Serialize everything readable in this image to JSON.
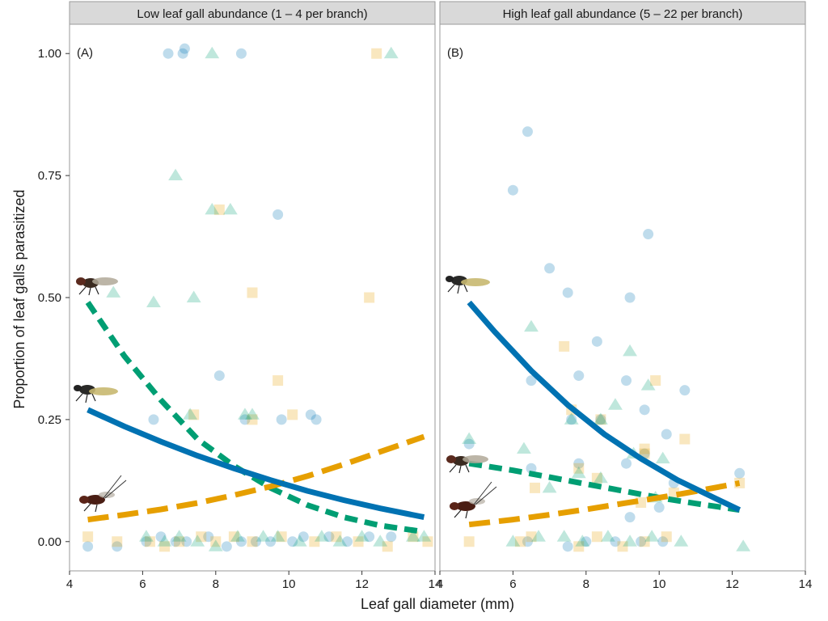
{
  "chart_data": {
    "type": "scatter",
    "ylabel": "Proportion of leaf galls parasitized",
    "xlabel": "Leaf gall diameter (mm)",
    "xlim": [
      4,
      14
    ],
    "ylim": [
      -0.06,
      1.06
    ],
    "x_ticks": [
      4,
      6,
      8,
      10,
      12,
      14
    ],
    "y_ticks": [
      0.0,
      0.25,
      0.5,
      0.75,
      1.0
    ],
    "y_tick_labels": [
      "0.00",
      "0.25",
      "0.50",
      "0.75",
      "1.00"
    ],
    "grid": false,
    "colors": {
      "blue": "#0072B2",
      "green": "#009E73",
      "orange": "#E69F00",
      "strip_bg": "#d9d9d9",
      "panel_border": "#9a9a9a"
    },
    "panels": [
      {
        "strip": "Low leaf gall abundance (1 – 4 per branch)",
        "tag": "(A)",
        "points": {
          "blue": [
            [
              6.7,
              1.0
            ],
            [
              7.1,
              1.0
            ],
            [
              7.15,
              1.01
            ],
            [
              8.7,
              1.0
            ],
            [
              9.7,
              0.67
            ],
            [
              8.1,
              0.34
            ],
            [
              6.3,
              0.25
            ],
            [
              8.8,
              0.25
            ],
            [
              9.8,
              0.25
            ],
            [
              10.6,
              0.26
            ],
            [
              10.75,
              0.25
            ],
            [
              4.5,
              -0.01
            ],
            [
              5.3,
              -0.01
            ],
            [
              6.1,
              0.0
            ],
            [
              6.5,
              0.01
            ],
            [
              6.9,
              0.0
            ],
            [
              7.2,
              0.0
            ],
            [
              7.8,
              0.01
            ],
            [
              8.3,
              -0.01
            ],
            [
              8.7,
              0.0
            ],
            [
              9.1,
              0.0
            ],
            [
              9.5,
              0.0
            ],
            [
              10.1,
              0.0
            ],
            [
              10.4,
              0.01
            ],
            [
              11.1,
              0.01
            ],
            [
              11.6,
              0.0
            ],
            [
              12.2,
              0.01
            ],
            [
              12.8,
              0.01
            ]
          ],
          "green": [
            [
              7.9,
              1.0
            ],
            [
              12.8,
              1.0
            ],
            [
              6.9,
              0.75
            ],
            [
              7.9,
              0.68
            ],
            [
              8.4,
              0.68
            ],
            [
              5.2,
              0.51
            ],
            [
              6.3,
              0.49
            ],
            [
              7.4,
              0.5
            ],
            [
              7.3,
              0.26
            ],
            [
              8.8,
              0.26
            ],
            [
              9.0,
              0.26
            ],
            [
              6.1,
              0.01
            ],
            [
              6.6,
              0.0
            ],
            [
              7.0,
              0.01
            ],
            [
              7.5,
              0.0
            ],
            [
              8.0,
              -0.01
            ],
            [
              8.6,
              0.01
            ],
            [
              9.3,
              0.01
            ],
            [
              9.7,
              0.01
            ],
            [
              10.3,
              0.0
            ],
            [
              10.9,
              0.01
            ],
            [
              11.4,
              0.0
            ],
            [
              12.0,
              0.01
            ],
            [
              12.5,
              0.0
            ],
            [
              13.4,
              0.01
            ],
            [
              13.7,
              0.01
            ]
          ],
          "orange": [
            [
              12.4,
              1.0
            ],
            [
              8.1,
              0.68
            ],
            [
              9.0,
              0.51
            ],
            [
              12.2,
              0.5
            ],
            [
              9.7,
              0.33
            ],
            [
              7.4,
              0.26
            ],
            [
              9.0,
              0.25
            ],
            [
              10.1,
              0.26
            ],
            [
              4.5,
              0.01
            ],
            [
              5.3,
              0.0
            ],
            [
              6.2,
              0.0
            ],
            [
              6.6,
              -0.01
            ],
            [
              7.0,
              0.0
            ],
            [
              7.6,
              0.01
            ],
            [
              8.0,
              0.0
            ],
            [
              8.5,
              0.01
            ],
            [
              9.0,
              0.0
            ],
            [
              9.8,
              0.01
            ],
            [
              10.7,
              0.0
            ],
            [
              11.3,
              0.01
            ],
            [
              11.9,
              0.0
            ],
            [
              12.7,
              -0.01
            ],
            [
              13.4,
              0.01
            ],
            [
              13.8,
              0.0
            ]
          ]
        },
        "curves": {
          "green": [
            [
              4.5,
              0.49
            ],
            [
              5.5,
              0.38
            ],
            [
              6.5,
              0.29
            ],
            [
              7.5,
              0.21
            ],
            [
              8.5,
              0.155
            ],
            [
              9.5,
              0.11
            ],
            [
              10.5,
              0.075
            ],
            [
              11.5,
              0.05
            ],
            [
              12.5,
              0.033
            ],
            [
              13.7,
              0.02
            ]
          ],
          "blue": [
            [
              4.5,
              0.27
            ],
            [
              5.5,
              0.236
            ],
            [
              6.5,
              0.205
            ],
            [
              7.5,
              0.176
            ],
            [
              8.5,
              0.15
            ],
            [
              9.5,
              0.126
            ],
            [
              10.5,
              0.104
            ],
            [
              11.5,
              0.085
            ],
            [
              12.5,
              0.068
            ],
            [
              13.7,
              0.05
            ]
          ],
          "orange": [
            [
              4.5,
              0.045
            ],
            [
              5.5,
              0.055
            ],
            [
              6.5,
              0.066
            ],
            [
              7.5,
              0.079
            ],
            [
              8.5,
              0.095
            ],
            [
              9.5,
              0.113
            ],
            [
              10.5,
              0.134
            ],
            [
              11.5,
              0.158
            ],
            [
              12.5,
              0.184
            ],
            [
              13.7,
              0.215
            ]
          ]
        }
      },
      {
        "strip": "High leaf gall abundance (5 – 22 per branch)",
        "tag": "(B)",
        "points": {
          "blue": [
            [
              6.4,
              0.84
            ],
            [
              6.0,
              0.72
            ],
            [
              9.7,
              0.63
            ],
            [
              7.0,
              0.56
            ],
            [
              7.5,
              0.51
            ],
            [
              9.2,
              0.5
            ],
            [
              8.3,
              0.41
            ],
            [
              7.8,
              0.34
            ],
            [
              6.5,
              0.33
            ],
            [
              9.1,
              0.33
            ],
            [
              10.7,
              0.31
            ],
            [
              9.6,
              0.27
            ],
            [
              7.6,
              0.25
            ],
            [
              8.4,
              0.25
            ],
            [
              10.2,
              0.22
            ],
            [
              4.8,
              0.2
            ],
            [
              6.5,
              0.15
            ],
            [
              7.8,
              0.16
            ],
            [
              9.1,
              0.16
            ],
            [
              9.6,
              0.18
            ],
            [
              10.0,
              0.07
            ],
            [
              9.2,
              0.05
            ],
            [
              12.2,
              0.14
            ],
            [
              10.4,
              0.12
            ],
            [
              6.4,
              0.0
            ],
            [
              7.5,
              -0.01
            ],
            [
              8.0,
              0.0
            ],
            [
              8.8,
              0.0
            ],
            [
              9.5,
              0.0
            ],
            [
              10.1,
              0.0
            ]
          ],
          "green": [
            [
              6.5,
              0.44
            ],
            [
              9.2,
              0.39
            ],
            [
              9.7,
              0.32
            ],
            [
              8.8,
              0.28
            ],
            [
              7.6,
              0.25
            ],
            [
              8.4,
              0.25
            ],
            [
              4.8,
              0.21
            ],
            [
              6.3,
              0.19
            ],
            [
              9.3,
              0.18
            ],
            [
              10.1,
              0.17
            ],
            [
              7.8,
              0.14
            ],
            [
              8.4,
              0.13
            ],
            [
              7.0,
              0.11
            ],
            [
              9.9,
              0.09
            ],
            [
              6.0,
              0.0
            ],
            [
              6.7,
              0.01
            ],
            [
              7.4,
              0.01
            ],
            [
              7.9,
              0.0
            ],
            [
              8.6,
              0.01
            ],
            [
              9.2,
              0.0
            ],
            [
              9.8,
              0.01
            ],
            [
              10.6,
              0.0
            ],
            [
              12.3,
              -0.01
            ]
          ],
          "orange": [
            [
              7.4,
              0.4
            ],
            [
              9.9,
              0.33
            ],
            [
              10.7,
              0.21
            ],
            [
              7.6,
              0.27
            ],
            [
              8.4,
              0.25
            ],
            [
              9.6,
              0.19
            ],
            [
              9.6,
              0.18
            ],
            [
              7.8,
              0.15
            ],
            [
              6.6,
              0.11
            ],
            [
              8.3,
              0.13
            ],
            [
              9.5,
              0.08
            ],
            [
              10.4,
              0.1
            ],
            [
              12.2,
              0.12
            ],
            [
              4.8,
              0.0
            ],
            [
              6.2,
              0.0
            ],
            [
              6.5,
              0.01
            ],
            [
              7.8,
              -0.01
            ],
            [
              8.3,
              0.01
            ],
            [
              9.0,
              -0.01
            ],
            [
              9.6,
              0.0
            ],
            [
              10.2,
              0.01
            ]
          ]
        },
        "curves": {
          "blue": [
            [
              4.8,
              0.49
            ],
            [
              5.5,
              0.43
            ],
            [
              6.5,
              0.35
            ],
            [
              7.5,
              0.28
            ],
            [
              8.5,
              0.22
            ],
            [
              9.5,
              0.17
            ],
            [
              10.5,
              0.126
            ],
            [
              11.5,
              0.09
            ],
            [
              12.2,
              0.065
            ]
          ],
          "green": [
            [
              4.8,
              0.16
            ],
            [
              6.0,
              0.146
            ],
            [
              7.0,
              0.132
            ],
            [
              8.0,
              0.118
            ],
            [
              9.0,
              0.104
            ],
            [
              10.0,
              0.09
            ],
            [
              11.0,
              0.078
            ],
            [
              12.2,
              0.065
            ]
          ],
          "orange": [
            [
              4.8,
              0.035
            ],
            [
              6.0,
              0.045
            ],
            [
              7.0,
              0.055
            ],
            [
              8.0,
              0.066
            ],
            [
              9.0,
              0.078
            ],
            [
              10.0,
              0.09
            ],
            [
              11.0,
              0.103
            ],
            [
              12.2,
              0.12
            ]
          ]
        }
      }
    ]
  }
}
